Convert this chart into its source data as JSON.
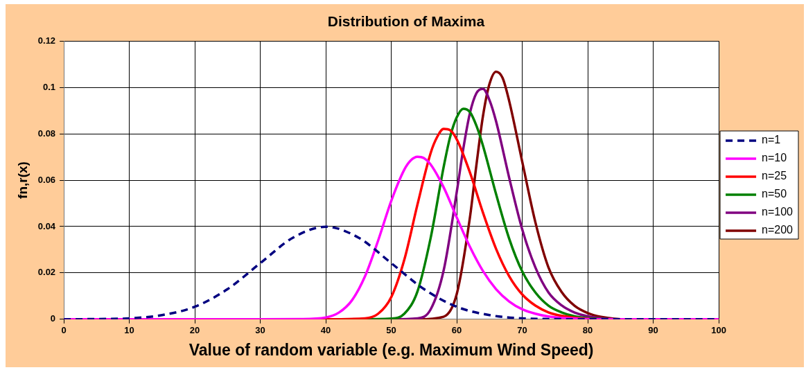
{
  "chart_data": {
    "type": "line",
    "title": "Distribution of Maxima",
    "xlabel": "Value of random variable (e.g. Maximum Wind Speed)",
    "ylabel": "fn,r(x)",
    "xlim": [
      0,
      100
    ],
    "xticks": [
      0,
      10,
      20,
      30,
      40,
      50,
      60,
      70,
      80,
      90,
      100
    ],
    "ylim": [
      0,
      0.12
    ],
    "yticks": [
      0,
      0.02,
      0.04,
      0.06,
      0.08,
      0.1,
      0.12
    ],
    "grid": true,
    "legend": "right",
    "marker": "none",
    "series": [
      {
        "name": "n=1",
        "color": "#000080",
        "line_style": "dashed",
        "x": [
          0,
          5,
          10,
          15,
          20,
          25,
          30,
          35,
          40,
          45,
          50,
          55,
          60,
          65,
          70,
          75,
          80,
          90,
          100
        ],
        "values": [
          0,
          0.0001,
          0.0004,
          0.0018,
          0.0054,
          0.013,
          0.0242,
          0.0352,
          0.0399,
          0.0352,
          0.0242,
          0.013,
          0.0054,
          0.0018,
          0.0004,
          0.0001,
          0,
          0,
          0
        ]
      },
      {
        "name": "n=10",
        "color": "#ff00ff",
        "line_style": "solid",
        "x": [
          0,
          30,
          36,
          40,
          42,
          44,
          46,
          48,
          50,
          52,
          53,
          54,
          55,
          56,
          58,
          60,
          62,
          64,
          66,
          68,
          70,
          72,
          74,
          76,
          80,
          85,
          100
        ],
        "values": [
          0,
          0,
          0.0001,
          0.0008,
          0.0029,
          0.0082,
          0.0186,
          0.034,
          0.0511,
          0.0646,
          0.0686,
          0.0701,
          0.0695,
          0.0668,
          0.0569,
          0.0439,
          0.0313,
          0.0208,
          0.013,
          0.0077,
          0.0043,
          0.0024,
          0.0012,
          0.0006,
          0.0001,
          0,
          0
        ]
      },
      {
        "name": "n=25",
        "color": "#ff0000",
        "line_style": "solid",
        "x": [
          0,
          40,
          46,
          48,
          50,
          52,
          54,
          56,
          57,
          58,
          59,
          60,
          62,
          64,
          66,
          68,
          70,
          72,
          74,
          76,
          80,
          85,
          100
        ],
        "values": [
          0,
          0,
          0.0004,
          0.0024,
          0.0096,
          0.0258,
          0.0495,
          0.0716,
          0.0786,
          0.0821,
          0.0815,
          0.0776,
          0.0634,
          0.046,
          0.0304,
          0.0186,
          0.0107,
          0.0059,
          0.003,
          0.0015,
          0.0002,
          0,
          0
        ]
      },
      {
        "name": "n=50",
        "color": "#008000",
        "line_style": "solid",
        "x": [
          0,
          45,
          50,
          52,
          54,
          56,
          58,
          59,
          60,
          61,
          62,
          63,
          64,
          66,
          68,
          70,
          72,
          74,
          76,
          78,
          80,
          85,
          100
        ],
        "values": [
          0,
          0,
          0.0003,
          0.0024,
          0.012,
          0.0349,
          0.0657,
          0.0788,
          0.0871,
          0.0908,
          0.0894,
          0.0835,
          0.0749,
          0.054,
          0.0348,
          0.0206,
          0.0116,
          0.0059,
          0.003,
          0.0013,
          0.0005,
          0,
          0
        ]
      },
      {
        "name": "n=100",
        "color": "#800080",
        "line_style": "solid",
        "x": [
          0,
          50,
          54,
          56,
          58,
          60,
          61,
          62,
          63,
          64,
          65,
          66,
          68,
          70,
          72,
          74,
          76,
          78,
          80,
          85,
          100
        ],
        "values": [
          0,
          0,
          0.0004,
          0.0042,
          0.0211,
          0.0549,
          0.0736,
          0.0888,
          0.0975,
          0.0994,
          0.0945,
          0.0854,
          0.0611,
          0.0387,
          0.0224,
          0.0116,
          0.006,
          0.0029,
          0.0013,
          0,
          0
        ]
      },
      {
        "name": "n=200",
        "color": "#800000",
        "line_style": "solid",
        "x": [
          0,
          54,
          58,
          60,
          62,
          63,
          64,
          65,
          66,
          67,
          68,
          70,
          72,
          74,
          76,
          78,
          80,
          82,
          86,
          100
        ],
        "values": [
          0,
          0,
          0.0011,
          0.0109,
          0.0437,
          0.0665,
          0.0876,
          0.1015,
          0.1068,
          0.1041,
          0.0942,
          0.0679,
          0.0419,
          0.0224,
          0.0118,
          0.0058,
          0.0027,
          0.0011,
          0,
          0
        ]
      }
    ]
  }
}
